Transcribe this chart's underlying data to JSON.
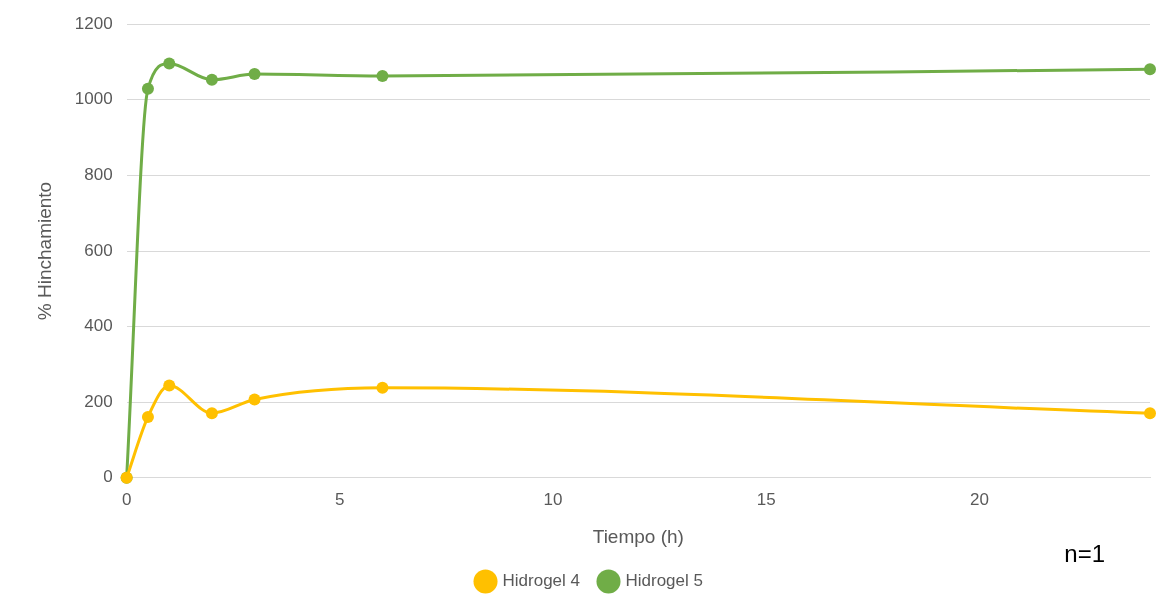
{
  "chart_data": {
    "type": "line",
    "xlabel": "Tiempo (h)",
    "ylabel": "% Hinchamiento",
    "x": [
      0,
      0.5,
      1,
      2,
      3,
      6,
      24
    ],
    "series": [
      {
        "name": "Hidrogel 4",
        "color": "#ffc000",
        "values": [
          0,
          161,
          244,
          171,
          207,
          238,
          171
        ]
      },
      {
        "name": "Hidrogel 5",
        "color": "#70ad47",
        "values": [
          0,
          1029,
          1096,
          1053,
          1068,
          1063,
          1081
        ]
      }
    ],
    "xlim": [
      0,
      24
    ],
    "xticks": [
      0,
      5,
      10,
      15,
      20
    ],
    "ylim": [
      0,
      1200
    ],
    "yticks": [
      0,
      200,
      400,
      600,
      800,
      1000,
      1200
    ],
    "grid": "y",
    "legend": "bottom",
    "marker": "circle",
    "line_style": "solid",
    "annotations": [
      "n=1"
    ]
  }
}
